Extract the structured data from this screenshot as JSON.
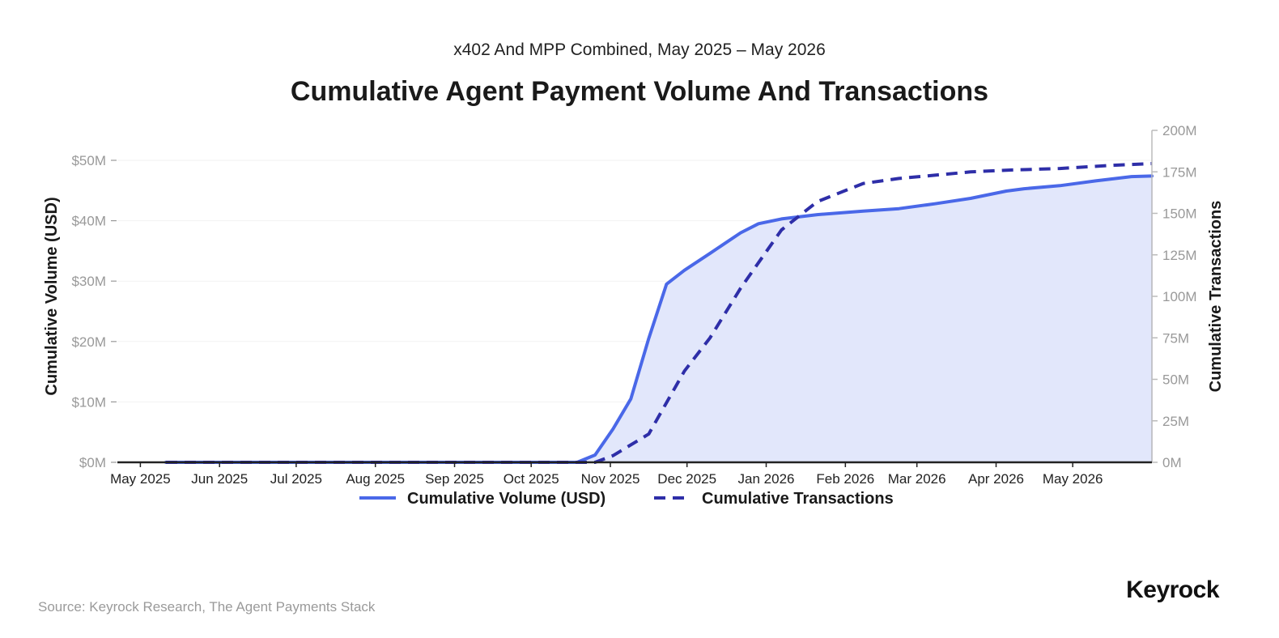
{
  "subtitle": "x402 And MPP Combined, May 2025 – May 2026",
  "title": "Cumulative Agent Payment Volume And Transactions",
  "source": "Source: Keyrock Research, The Agent Payments Stack",
  "brand": "Keyrock",
  "colors": {
    "volume_line": "#4a68e8",
    "volume_fill": "#e2e7fb",
    "transactions_line": "#2e2ea8",
    "axis": "#222222",
    "right_axis": "#bbbbbb",
    "tick_text": "#999999",
    "grid": "#f2f2f2"
  },
  "chart_data": {
    "type": "line",
    "title": "Cumulative Agent Payment Volume And Transactions",
    "subtitle": "x402 And MPP Combined, May 2025 – May 2026",
    "x_ticks": [
      "May 2025",
      "Jun 2025",
      "Jul 2025",
      "Aug 2025",
      "Sep 2025",
      "Oct 2025",
      "Nov 2025",
      "Dec 2025",
      "Jan 2026",
      "Feb 2026",
      "Mar 2026",
      "Apr 2026",
      "May 2026"
    ],
    "x_tick_dates": [
      "2025-05-01",
      "2025-06-01",
      "2025-07-01",
      "2025-08-01",
      "2025-09-01",
      "2025-10-01",
      "2025-11-01",
      "2025-12-01",
      "2026-01-01",
      "2026-02-01",
      "2026-03-01",
      "2026-04-01",
      "2026-05-01"
    ],
    "xlim": [
      "2025-04-22",
      "2026-06-01"
    ],
    "y_left": {
      "label": "Cumulative Volume (USD)",
      "ylim": [
        0,
        50
      ],
      "ticks": [
        0,
        10,
        20,
        30,
        40,
        50
      ],
      "tick_labels": [
        "$0M",
        "$10M",
        "$20M",
        "$30M",
        "$40M",
        "$50M"
      ]
    },
    "y_right": {
      "label": "Cumulative Transactions",
      "ylim": [
        0,
        200
      ],
      "ticks": [
        0,
        25,
        50,
        75,
        100,
        125,
        150,
        175,
        200
      ],
      "tick_labels": [
        "0M",
        "25M",
        "50M",
        "75M",
        "100M",
        "125M",
        "150M",
        "175M",
        "200M"
      ]
    },
    "grid": true,
    "legend_position": "bottom-center",
    "series": [
      {
        "name": "Cumulative Volume (USD)",
        "axis": "left",
        "style": "solid",
        "filled": true,
        "points": [
          [
            "2025-05-11",
            0
          ],
          [
            "2025-10-19",
            0
          ],
          [
            "2025-10-26",
            1.2
          ],
          [
            "2025-11-02",
            5.5
          ],
          [
            "2025-11-09",
            10.5
          ],
          [
            "2025-11-16",
            20.5
          ],
          [
            "2025-11-23",
            29.5
          ],
          [
            "2025-11-30",
            31.8
          ],
          [
            "2025-12-10",
            34.6
          ],
          [
            "2025-12-22",
            38.0
          ],
          [
            "2025-12-29",
            39.5
          ],
          [
            "2026-01-07",
            40.3
          ],
          [
            "2026-01-21",
            41.0
          ],
          [
            "2026-02-08",
            41.6
          ],
          [
            "2026-02-22",
            42.0
          ],
          [
            "2026-03-08",
            42.8
          ],
          [
            "2026-03-22",
            43.7
          ],
          [
            "2026-03-29",
            44.3
          ],
          [
            "2026-04-05",
            44.9
          ],
          [
            "2026-04-12",
            45.3
          ],
          [
            "2026-04-26",
            45.8
          ],
          [
            "2026-05-10",
            46.6
          ],
          [
            "2026-05-24",
            47.3
          ],
          [
            "2026-06-01",
            47.4
          ]
        ]
      },
      {
        "name": "Cumulative Transactions",
        "axis": "right",
        "style": "dashed",
        "filled": false,
        "points": [
          [
            "2025-05-11",
            0
          ],
          [
            "2025-10-26",
            0
          ],
          [
            "2025-11-02",
            4
          ],
          [
            "2025-11-16",
            17
          ],
          [
            "2025-11-30",
            55
          ],
          [
            "2025-12-10",
            75
          ],
          [
            "2025-12-22",
            105
          ],
          [
            "2026-01-07",
            140
          ],
          [
            "2026-01-21",
            157
          ],
          [
            "2026-02-08",
            168
          ],
          [
            "2026-02-22",
            171
          ],
          [
            "2026-03-08",
            173
          ],
          [
            "2026-03-22",
            175
          ],
          [
            "2026-04-05",
            176
          ],
          [
            "2026-04-26",
            177
          ],
          [
            "2026-05-17",
            179
          ],
          [
            "2026-06-01",
            180
          ]
        ]
      }
    ]
  }
}
